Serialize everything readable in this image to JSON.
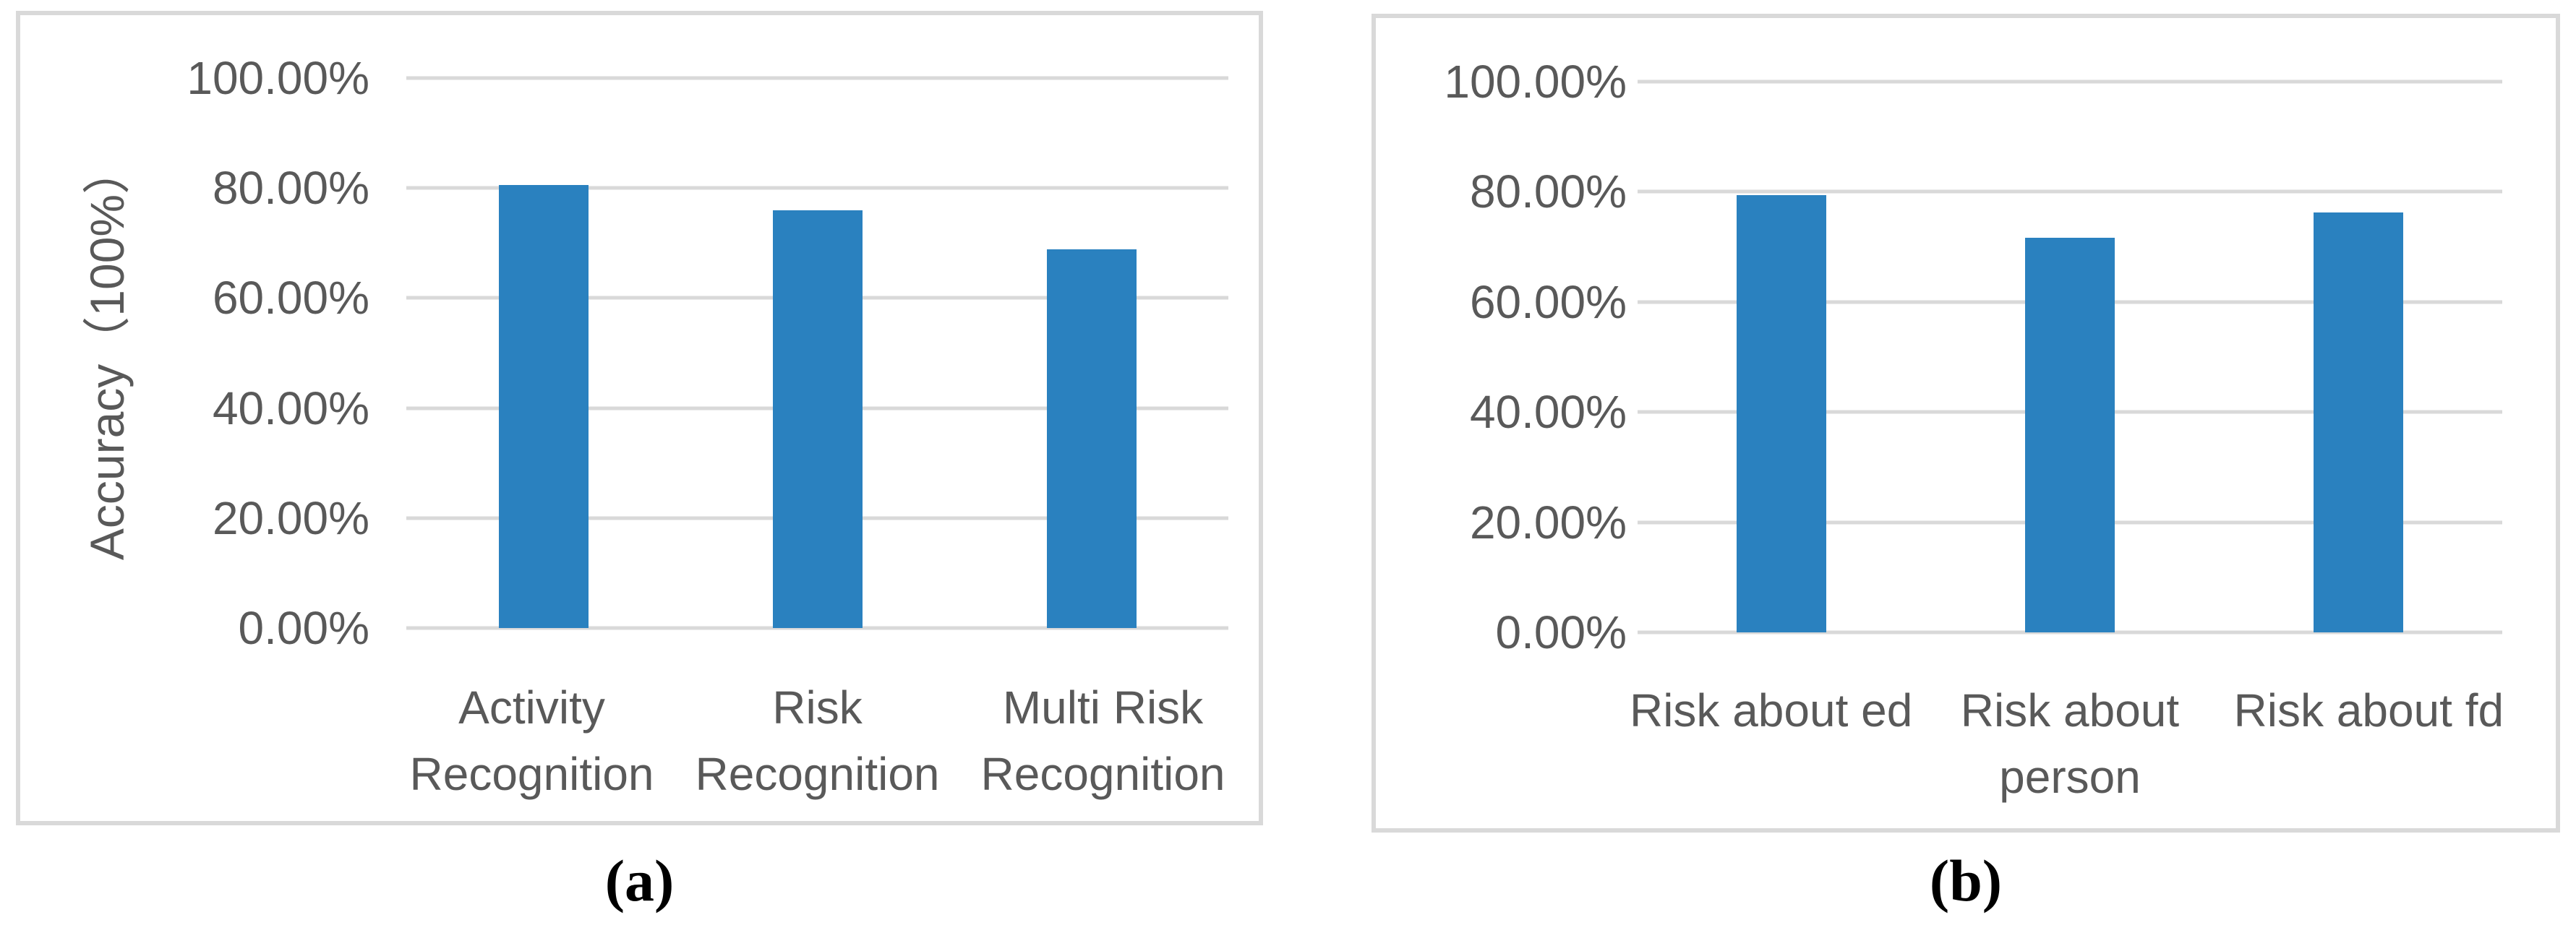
{
  "colors": {
    "bar_blue": "#2A81BF",
    "gridline_gray": "#D9D9D9",
    "panel_border_gray": "#D9D9D9",
    "axis_text_gray": "#595959",
    "caption_black": "#000000"
  },
  "captions": {
    "a": "(a)",
    "b": "(b)"
  },
  "chart_data": [
    {
      "type": "bar",
      "title": "",
      "ylabel": "Accuracy（100%）",
      "xlabel": "",
      "categories": [
        "Activity\nRecognition",
        "Risk\nRecognition",
        "Multi Risk\nRecognition"
      ],
      "values": [
        80.5,
        76.0,
        68.8
      ],
      "y_ticks": [
        "100.00%",
        "80.00%",
        "60.00%",
        "40.00%",
        "20.00%",
        "0.00%"
      ],
      "ylim": [
        0,
        100
      ],
      "grid": true,
      "legend": "none",
      "bar_color": "#2A81BF"
    },
    {
      "type": "bar",
      "title": "",
      "ylabel": "",
      "xlabel": "",
      "categories": [
        "Risk about ed",
        "Risk about\nperson",
        "Risk about fd"
      ],
      "values": [
        79.4,
        71.7,
        76.3
      ],
      "y_ticks": [
        "100.00%",
        "80.00%",
        "60.00%",
        "40.00%",
        "20.00%",
        "0.00%"
      ],
      "ylim": [
        0,
        100
      ],
      "grid": true,
      "legend": "none",
      "bar_color": "#2A81BF"
    }
  ]
}
